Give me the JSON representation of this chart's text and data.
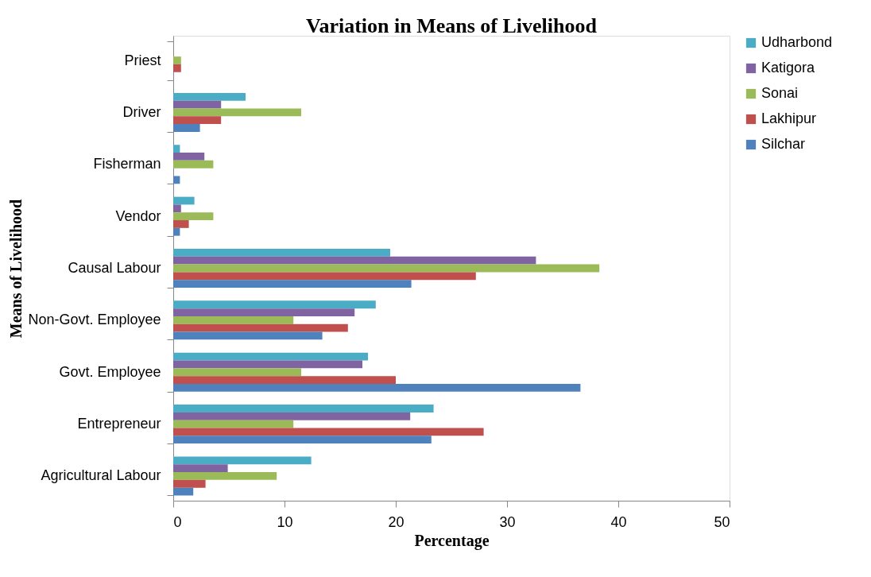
{
  "chart_data": {
    "type": "bar",
    "orientation": "horizontal",
    "title": "Variation in Means of Livelihood",
    "xlabel": "Percentage",
    "ylabel": "Means of Livelihood",
    "categories": [
      "Priest",
      "Driver",
      "Fisherman",
      "Vendor",
      "Causal Labour",
      "Non-Govt. Employee",
      "Govt. Employee",
      "Entrepreneur",
      "Agricultural Labour"
    ],
    "series": [
      {
        "name": "Udharbond",
        "color": "#4bacc6",
        "values": [
          null,
          6.5,
          0.6,
          1.9,
          19.5,
          18.2,
          17.5,
          23.4,
          12.4
        ]
      },
      {
        "name": "Katigora",
        "color": "#8064a2",
        "values": [
          null,
          4.3,
          2.8,
          0.7,
          32.6,
          16.3,
          17.0,
          21.3,
          4.9
        ]
      },
      {
        "name": "Sonai",
        "color": "#9bbb59",
        "values": [
          0.7,
          11.5,
          3.6,
          3.6,
          38.3,
          10.8,
          11.5,
          10.8,
          9.3
        ]
      },
      {
        "name": "Lakhipur",
        "color": "#c0504d",
        "values": [
          0.7,
          4.3,
          null,
          1.4,
          27.2,
          15.7,
          20.0,
          27.9,
          2.9
        ]
      },
      {
        "name": "Silchar",
        "color": "#4f81bd",
        "values": [
          null,
          2.4,
          0.6,
          0.6,
          21.4,
          13.4,
          36.6,
          23.2,
          1.8
        ]
      }
    ],
    "xlim": [
      0,
      50
    ],
    "xticks": [
      0,
      10,
      20,
      30,
      40,
      50
    ],
    "grid": false,
    "legend": "right"
  }
}
